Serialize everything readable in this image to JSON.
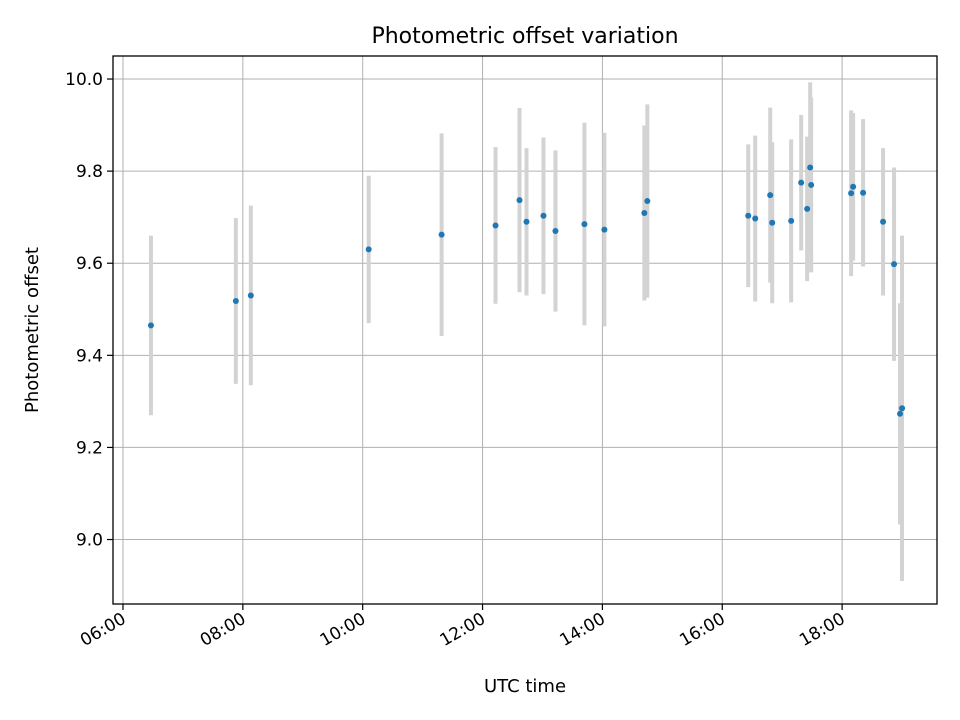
{
  "chart_data": {
    "type": "scatter",
    "title": "Photometric offset variation",
    "xlabel": "UTC time",
    "ylabel": "Photometric offset",
    "x_axis_type": "time",
    "xlim": [
      "05:50",
      "19:35"
    ],
    "ylim": [
      8.86,
      10.05
    ],
    "x_ticks": [
      "06:00",
      "08:00",
      "10:00",
      "12:00",
      "14:00",
      "16:00",
      "18:00"
    ],
    "y_ticks": [
      "9.0",
      "9.2",
      "9.4",
      "9.6",
      "9.8",
      "10.0"
    ],
    "y_tick_values": [
      9.0,
      9.2,
      9.4,
      9.6,
      9.8,
      10.0
    ],
    "grid": true,
    "legend": "none",
    "marker_color": "#1f77b4",
    "errorbar_color": "#d3d3d3",
    "points": [
      {
        "x": "06:28",
        "y": 9.465,
        "err": 0.195
      },
      {
        "x": "07:53",
        "y": 9.518,
        "err": 0.18
      },
      {
        "x": "08:08",
        "y": 9.53,
        "err": 0.195
      },
      {
        "x": "10:06",
        "y": 9.63,
        "err": 0.16
      },
      {
        "x": "11:19",
        "y": 9.662,
        "err": 0.22
      },
      {
        "x": "12:13",
        "y": 9.682,
        "err": 0.17
      },
      {
        "x": "12:37",
        "y": 9.737,
        "err": 0.2
      },
      {
        "x": "12:44",
        "y": 9.69,
        "err": 0.16
      },
      {
        "x": "13:01",
        "y": 9.703,
        "err": 0.17
      },
      {
        "x": "13:13",
        "y": 9.67,
        "err": 0.175
      },
      {
        "x": "13:42",
        "y": 9.685,
        "err": 0.22
      },
      {
        "x": "14:02",
        "y": 9.673,
        "err": 0.21
      },
      {
        "x": "14:42",
        "y": 9.709,
        "err": 0.19
      },
      {
        "x": "14:45",
        "y": 9.735,
        "err": 0.21
      },
      {
        "x": "16:26",
        "y": 9.703,
        "err": 0.155
      },
      {
        "x": "16:33",
        "y": 9.697,
        "err": 0.18
      },
      {
        "x": "16:48",
        "y": 9.748,
        "err": 0.19
      },
      {
        "x": "16:50",
        "y": 9.688,
        "err": 0.175
      },
      {
        "x": "17:09",
        "y": 9.692,
        "err": 0.177
      },
      {
        "x": "17:19",
        "y": 9.775,
        "err": 0.147
      },
      {
        "x": "17:25",
        "y": 9.718,
        "err": 0.157
      },
      {
        "x": "17:28",
        "y": 9.808,
        "err": 0.185
      },
      {
        "x": "17:29",
        "y": 9.77,
        "err": 0.19
      },
      {
        "x": "18:09",
        "y": 9.752,
        "err": 0.18
      },
      {
        "x": "18:11",
        "y": 9.766,
        "err": 0.16
      },
      {
        "x": "18:21",
        "y": 9.753,
        "err": 0.16
      },
      {
        "x": "18:41",
        "y": 9.69,
        "err": 0.16
      },
      {
        "x": "18:52",
        "y": 9.598,
        "err": 0.21
      },
      {
        "x": "18:58",
        "y": 9.273,
        "err": 0.24
      },
      {
        "x": "19:00",
        "y": 9.285,
        "err": 0.375
      }
    ]
  }
}
